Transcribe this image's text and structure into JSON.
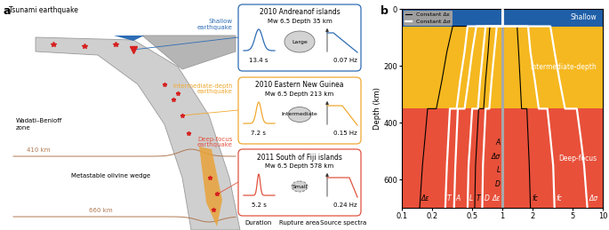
{
  "diagram": {
    "panel_label": "a",
    "tsunami": "Tsunami earthquake",
    "wadati": "Wadati–Benioff\nzone",
    "olivine": "Metastable olivine wedge",
    "d410": "410 km",
    "d660": "660 km",
    "events": [
      {
        "type_label": "Shallow\nearthquake",
        "name": "2010 Andreanof islands",
        "info": "Mw 6.5 Depth 35 km",
        "duration": "13.4 s",
        "rupture_area": "Large",
        "corner_frequency": "0.07 Hz",
        "color": "#2e6db4"
      },
      {
        "type_label": "Intermediate-depth\nearthquake",
        "name": "2010 Eastern New Guinea",
        "info": "Mw 6.5 Depth 213 km",
        "duration": "7.2 s",
        "rupture_area": "Intermediate",
        "corner_frequency": "0.15 Hz",
        "color": "#f0a830"
      },
      {
        "type_label": "Deep-focus\nearthquake",
        "name": "2011 South of Fiji islands",
        "info": "Mw 6.5 Depth 578 km",
        "duration": "5.2 s",
        "rupture_area": "Small",
        "corner_frequency": "0.24 Hz",
        "color": "#e0533f"
      }
    ],
    "footer": [
      "Duration",
      "Rupture area",
      "Source spectra"
    ]
  },
  "chart_data": {
    "type": "line",
    "panel_label": "b",
    "ylabel": "Depth (km)",
    "log": "x",
    "xlim": [
      0.1,
      10
    ],
    "xticks": [
      0.1,
      0.2,
      0.5,
      1,
      2,
      5,
      10
    ],
    "ylim": [
      700,
      0
    ],
    "yticks": [
      0,
      200,
      400,
      600
    ],
    "reference": 1,
    "bands": [
      {
        "label": "Shallow",
        "from": 0,
        "to": 60,
        "color": "#1f5fa8"
      },
      {
        "label": "Intermediate-depth",
        "from": 60,
        "to": 350,
        "color": "#f5b820"
      },
      {
        "label": "Deep-focus",
        "from": 350,
        "to": 700,
        "color": "#e8503a"
      }
    ],
    "y": [
      0,
      60,
      60,
      150,
      250,
      350,
      350,
      450,
      550,
      700
    ],
    "series": [
      {
        "name": "Constant Δε",
        "color": "#000000",
        "lines": [
          {
            "label": "Δε",
            "values": [
              1,
              1,
              0.32,
              0.28,
              0.25,
              0.22,
              0.18,
              0.17,
              0.16,
              0.15
            ]
          },
          {
            "label": "T",
            "values": [
              1,
              1,
              0.75,
              0.72,
              0.68,
              0.65,
              0.58,
              0.56,
              0.54,
              0.53
            ]
          },
          {
            "label": "fc",
            "values": [
              1,
              1,
              1.4,
              1.45,
              1.5,
              1.55,
              1.75,
              1.8,
              1.85,
              1.9
            ]
          }
        ]
      },
      {
        "name": "Constant Δσ",
        "color": "#ffffff",
        "lines": [
          {
            "label": "T",
            "values": [
              1,
              1,
              0.45,
              0.42,
              0.38,
              0.35,
              0.3,
              0.29,
              0.28,
              0.27
            ]
          },
          {
            "label": "A",
            "values": [
              1,
              1,
              0.55,
              0.5,
              0.46,
              0.42,
              0.36,
              0.35,
              0.34,
              0.33
            ]
          },
          {
            "label": "L",
            "values": [
              1,
              1,
              0.68,
              0.64,
              0.6,
              0.57,
              0.5,
              0.48,
              0.46,
              0.45
            ]
          },
          {
            "label": "D",
            "values": [
              1,
              1,
              0.88,
              0.83,
              0.78,
              0.74,
              0.68,
              0.66,
              0.64,
              0.63
            ]
          },
          {
            "label": "fc",
            "values": [
              1,
              1,
              1.8,
              1.9,
              2.1,
              2.3,
              2.8,
              3.0,
              3.2,
              3.3
            ]
          },
          {
            "label": "Δσ",
            "values": [
              1,
              1,
              3.0,
              3.3,
              3.7,
              4.2,
              5.5,
              6.0,
              6.5,
              7.0
            ]
          }
        ]
      }
    ],
    "center_labels": [
      {
        "text": "A",
        "color": "#000000"
      },
      {
        "text": "Δσ",
        "color": "#000000"
      },
      {
        "text": "L",
        "color": "#000000"
      },
      {
        "text": "D",
        "color": "#000000"
      },
      {
        "text": "Δε",
        "color": "#ffffff"
      }
    ],
    "legend": "upper left"
  }
}
